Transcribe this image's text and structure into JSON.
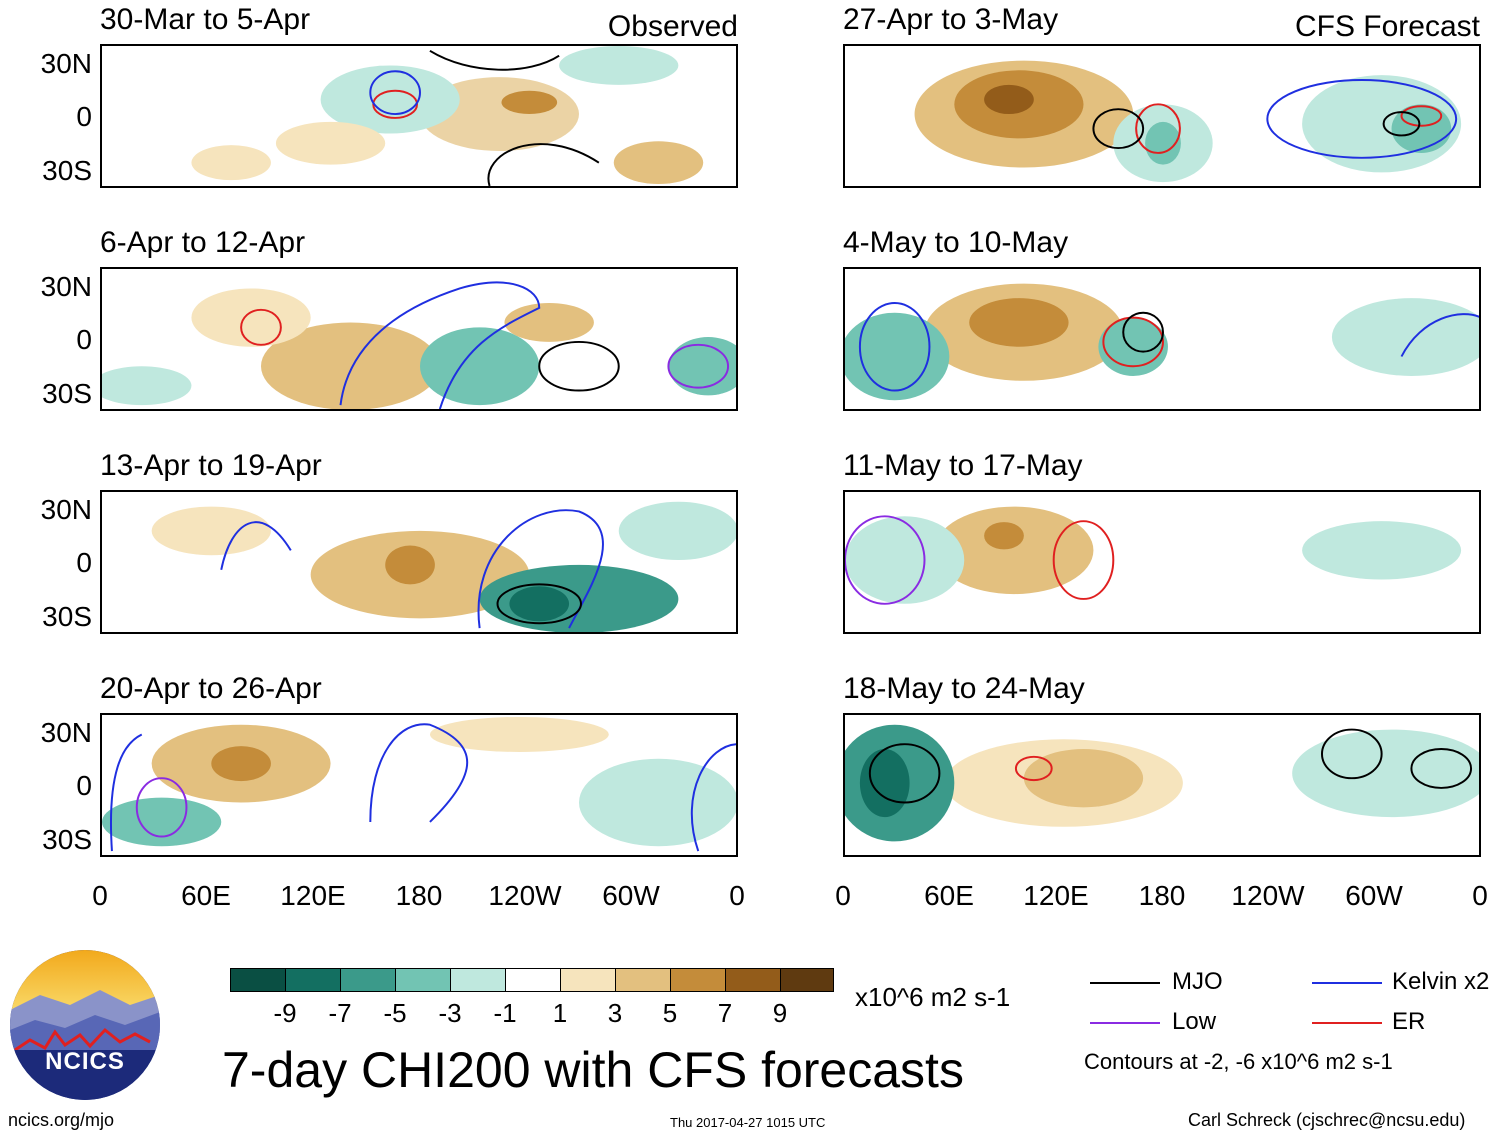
{
  "header": {
    "observed_label": "Observed",
    "forecast_label": "CFS Forecast"
  },
  "observed_panels": [
    {
      "title": "30-Mar to 5-Apr"
    },
    {
      "title": "6-Apr to 12-Apr"
    },
    {
      "title": "13-Apr to 19-Apr"
    },
    {
      "title": "20-Apr to 26-Apr"
    }
  ],
  "forecast_panels": [
    {
      "title": "27-Apr to 3-May"
    },
    {
      "title": "4-May to 10-May"
    },
    {
      "title": "11-May to 17-May"
    },
    {
      "title": "18-May to 24-May"
    }
  ],
  "axes": {
    "lat_labels": [
      "30N",
      "0",
      "30S"
    ],
    "lon_labels": [
      "0",
      "60E",
      "120E",
      "180",
      "120W",
      "60W",
      "0"
    ]
  },
  "colorbar": {
    "ticks": [
      "-9",
      "-7",
      "-5",
      "-3",
      "-1",
      "1",
      "3",
      "5",
      "7",
      "9"
    ],
    "colors": [
      "#0a4f43",
      "#136f61",
      "#3b9a8a",
      "#72c4b3",
      "#bfe8de",
      "#ffffff",
      "#f6e4bd",
      "#e3c07f",
      "#c48c3a",
      "#935c1a",
      "#5f3a10"
    ],
    "units": "x10^6 m2 s-1"
  },
  "legend": {
    "items": [
      {
        "label": "MJO",
        "color": "#000000"
      },
      {
        "label": "Kelvin x2",
        "color": "#1f2fe0"
      },
      {
        "label": "Low",
        "color": "#8a2be2"
      },
      {
        "label": "ER",
        "color": "#e02020"
      }
    ],
    "contours_note": "Contours at -2, -6 x10^6 m2 s-1"
  },
  "footer": {
    "main_title": "7-day CHI200 with CFS forecasts",
    "url": "ncics.org/mjo",
    "timestamp": "Thu 2017-04-27 1015 UTC",
    "author": "Carl Schreck (cjschrec@ncsu.edu)",
    "logo_text": "NCICS"
  }
}
